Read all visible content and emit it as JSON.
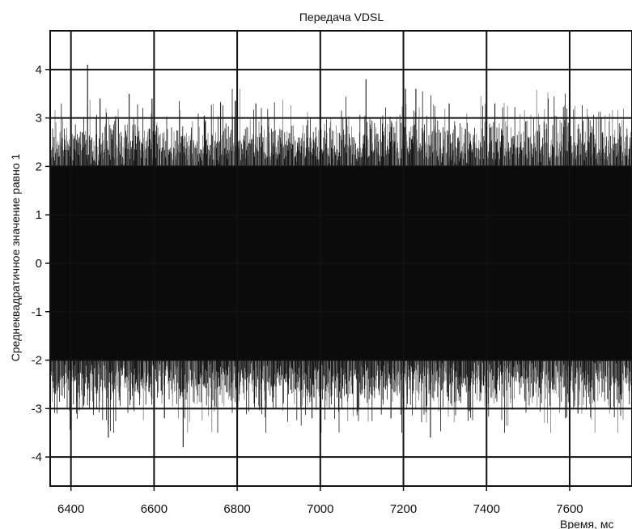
{
  "chart_data": {
    "type": "line",
    "title": "Передача VDSL",
    "xlabel": "Время, мс",
    "ylabel": "Среднеквадратичное значение равно 1",
    "xlim": [
      6350,
      7750
    ],
    "ylim": [
      -4.6,
      4.8
    ],
    "xticks": [
      6400,
      6600,
      6800,
      7000,
      7200,
      7400,
      7600
    ],
    "xtick_labels": [
      "6400",
      "6600",
      "6800",
      "7000",
      "7200",
      "7400",
      "7600"
    ],
    "yticks": [
      -4,
      -3,
      -2,
      -1,
      0,
      1,
      2,
      3,
      4
    ],
    "ytick_labels": [
      "-4",
      "-3",
      "-2",
      "-1",
      "0",
      "1",
      "2",
      "3",
      "4"
    ],
    "grid": true,
    "series": [
      {
        "description": "noise-like VDSL transmit signal, RMS = 1, mostly within ±2",
        "color": "#000000",
        "envelope": [
          -2.0,
          2.0
        ],
        "peaks": [
          {
            "x": 6440,
            "y": 4.1
          },
          {
            "x": 6470,
            "y": 3.4
          },
          {
            "x": 6540,
            "y": 3.5
          },
          {
            "x": 6595,
            "y": 3.4
          },
          {
            "x": 6760,
            "y": 3.3
          },
          {
            "x": 6845,
            "y": 3.3
          },
          {
            "x": 7110,
            "y": 3.8
          },
          {
            "x": 7205,
            "y": 3.6
          },
          {
            "x": 7230,
            "y": 3.6
          },
          {
            "x": 7310,
            "y": 3.3
          },
          {
            "x": 7420,
            "y": 3.3
          },
          {
            "x": 6490,
            "y": -3.6
          },
          {
            "x": 6670,
            "y": -3.8
          },
          {
            "x": 6625,
            "y": -3.2
          },
          {
            "x": 6980,
            "y": -3.2
          },
          {
            "x": 7170,
            "y": -3.2
          },
          {
            "x": 7265,
            "y": -3.6
          },
          {
            "x": 7590,
            "y": -3.2
          },
          {
            "x": 7620,
            "y": -3.1
          }
        ]
      }
    ]
  }
}
